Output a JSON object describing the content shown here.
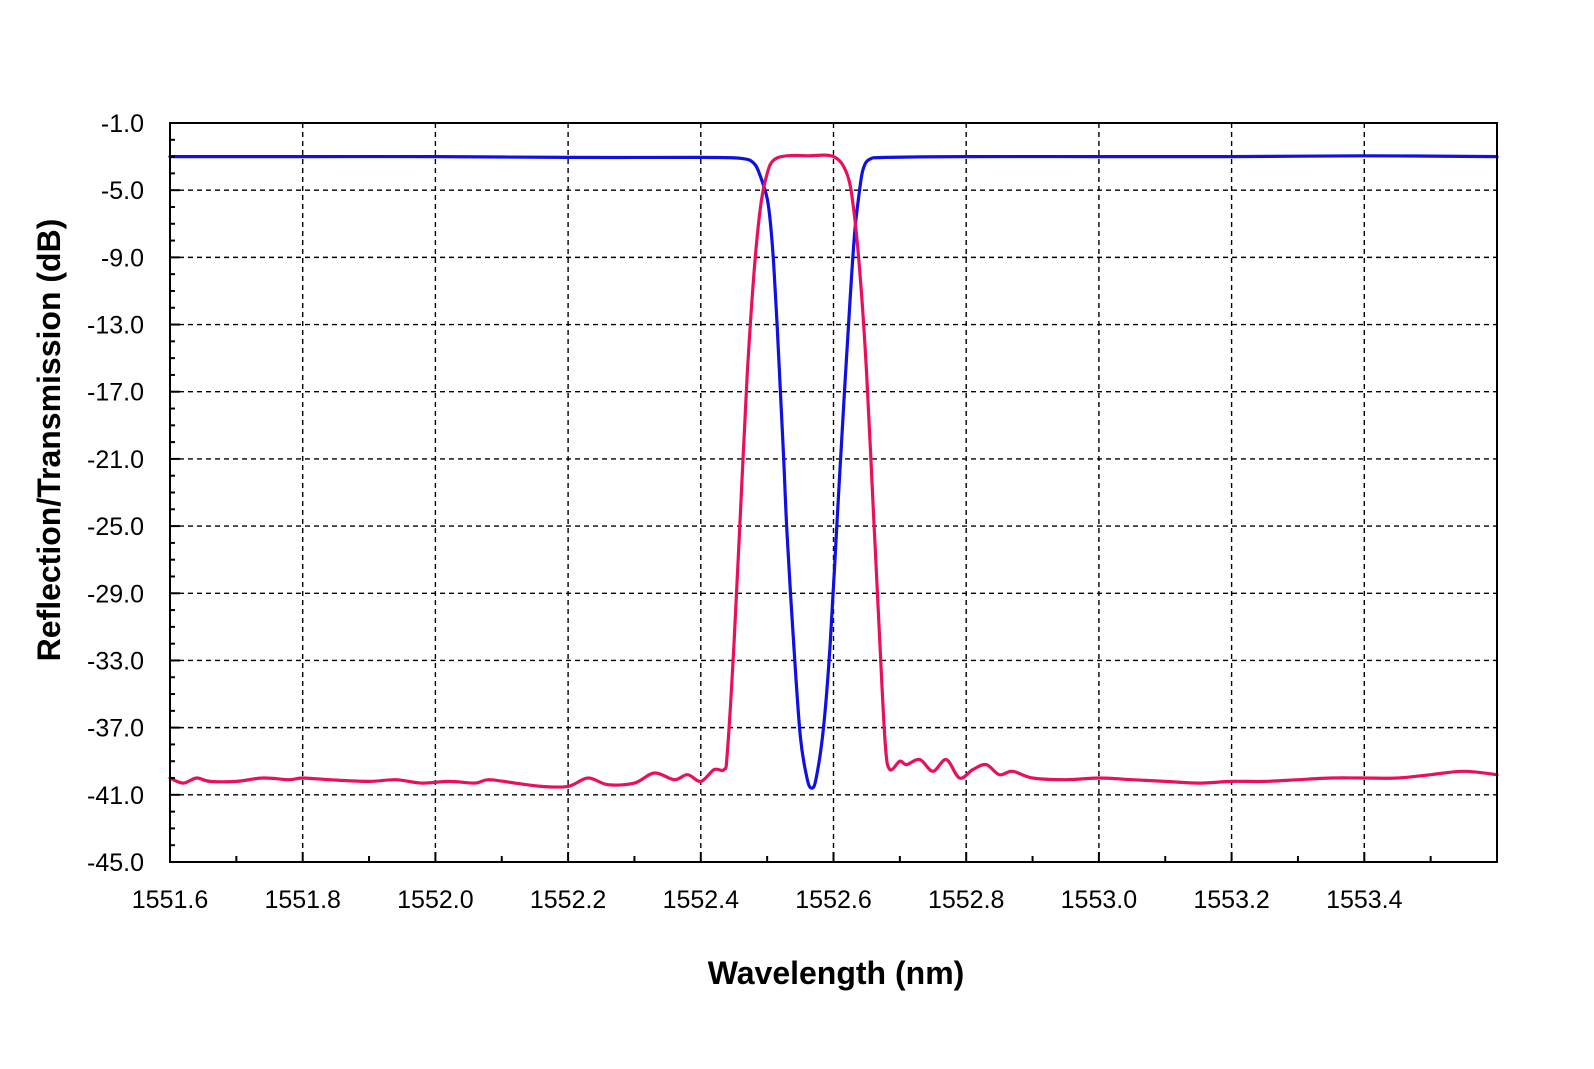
{
  "chart_data": {
    "type": "line",
    "title": "",
    "xlabel": "Wavelength (nm)",
    "ylabel": "Reflection/Transmission  (dB)",
    "xlim": [
      1551.6,
      1553.6
    ],
    "ylim": [
      -45.0,
      -1.0
    ],
    "grid": true,
    "x_ticks": [
      "1551.6",
      "1551.8",
      "1552.0",
      "1552.2",
      "1552.4",
      "1552.6",
      "1552.8",
      "1553.0",
      "1553.2",
      "1553.4"
    ],
    "y_ticks": [
      "-1.0",
      "-5.0",
      "-9.0",
      "-13.0",
      "-17.0",
      "-21.0",
      "-25.0",
      "-29.0",
      "-33.0",
      "-37.0",
      "-41.0",
      "-45.0"
    ],
    "series": [
      {
        "color": "#1010e0",
        "points": [
          [
            1551.6,
            -3.0
          ],
          [
            1551.8,
            -3.0
          ],
          [
            1552.0,
            -3.0
          ],
          [
            1552.2,
            -3.05
          ],
          [
            1552.4,
            -3.05
          ],
          [
            1552.46,
            -3.1
          ],
          [
            1552.48,
            -3.4
          ],
          [
            1552.49,
            -4.2
          ],
          [
            1552.5,
            -5.5
          ],
          [
            1552.505,
            -7.0
          ],
          [
            1552.51,
            -9.5
          ],
          [
            1552.515,
            -13.0
          ],
          [
            1552.52,
            -17.0
          ],
          [
            1552.525,
            -21.0
          ],
          [
            1552.53,
            -25.5
          ],
          [
            1552.54,
            -32.0
          ],
          [
            1552.55,
            -37.5
          ],
          [
            1552.56,
            -40.0
          ],
          [
            1552.567,
            -40.6
          ],
          [
            1552.574,
            -40.0
          ],
          [
            1552.585,
            -37.0
          ],
          [
            1552.595,
            -32.0
          ],
          [
            1552.605,
            -25.0
          ],
          [
            1552.615,
            -18.0
          ],
          [
            1552.625,
            -11.5
          ],
          [
            1552.632,
            -7.5
          ],
          [
            1552.64,
            -4.8
          ],
          [
            1552.645,
            -3.7
          ],
          [
            1552.655,
            -3.15
          ],
          [
            1552.68,
            -3.05
          ],
          [
            1552.8,
            -3.0
          ],
          [
            1553.0,
            -3.0
          ],
          [
            1553.2,
            -3.0
          ],
          [
            1553.4,
            -2.95
          ],
          [
            1553.6,
            -3.0
          ]
        ]
      },
      {
        "color": "#e8105e",
        "points": [
          [
            1551.6,
            -40.0
          ],
          [
            1551.62,
            -40.3
          ],
          [
            1551.64,
            -40.0
          ],
          [
            1551.66,
            -40.2
          ],
          [
            1551.7,
            -40.2
          ],
          [
            1551.74,
            -40.0
          ],
          [
            1551.78,
            -40.1
          ],
          [
            1551.8,
            -40.0
          ],
          [
            1551.84,
            -40.1
          ],
          [
            1551.9,
            -40.2
          ],
          [
            1551.94,
            -40.1
          ],
          [
            1551.98,
            -40.3
          ],
          [
            1552.02,
            -40.2
          ],
          [
            1552.06,
            -40.3
          ],
          [
            1552.08,
            -40.1
          ],
          [
            1552.12,
            -40.3
          ],
          [
            1552.16,
            -40.5
          ],
          [
            1552.2,
            -40.5
          ],
          [
            1552.23,
            -40.0
          ],
          [
            1552.26,
            -40.4
          ],
          [
            1552.3,
            -40.3
          ],
          [
            1552.33,
            -39.7
          ],
          [
            1552.36,
            -40.1
          ],
          [
            1552.38,
            -39.8
          ],
          [
            1552.4,
            -40.2
          ],
          [
            1552.42,
            -39.5
          ],
          [
            1552.435,
            -39.5
          ],
          [
            1552.44,
            -38.5
          ],
          [
            1552.45,
            -32.0
          ],
          [
            1552.46,
            -24.0
          ],
          [
            1552.47,
            -16.0
          ],
          [
            1552.48,
            -10.0
          ],
          [
            1552.49,
            -6.0
          ],
          [
            1552.5,
            -4.0
          ],
          [
            1552.51,
            -3.2
          ],
          [
            1552.53,
            -2.95
          ],
          [
            1552.56,
            -2.95
          ],
          [
            1552.6,
            -3.0
          ],
          [
            1552.62,
            -4.0
          ],
          [
            1552.63,
            -6.0
          ],
          [
            1552.64,
            -10.0
          ],
          [
            1552.65,
            -16.0
          ],
          [
            1552.66,
            -24.0
          ],
          [
            1552.67,
            -32.0
          ],
          [
            1552.678,
            -38.0
          ],
          [
            1552.685,
            -39.5
          ],
          [
            1552.7,
            -39.0
          ],
          [
            1552.71,
            -39.2
          ],
          [
            1552.73,
            -38.9
          ],
          [
            1552.75,
            -39.6
          ],
          [
            1552.77,
            -38.9
          ],
          [
            1552.79,
            -40.0
          ],
          [
            1552.81,
            -39.5
          ],
          [
            1552.83,
            -39.2
          ],
          [
            1552.85,
            -39.8
          ],
          [
            1552.87,
            -39.6
          ],
          [
            1552.9,
            -40.0
          ],
          [
            1552.95,
            -40.1
          ],
          [
            1553.0,
            -40.0
          ],
          [
            1553.05,
            -40.1
          ],
          [
            1553.1,
            -40.2
          ],
          [
            1553.15,
            -40.3
          ],
          [
            1553.2,
            -40.2
          ],
          [
            1553.25,
            -40.2
          ],
          [
            1553.3,
            -40.1
          ],
          [
            1553.35,
            -40.0
          ],
          [
            1553.4,
            -40.0
          ],
          [
            1553.45,
            -40.0
          ],
          [
            1553.5,
            -39.8
          ],
          [
            1553.55,
            -39.6
          ],
          [
            1553.6,
            -39.8
          ]
        ]
      }
    ]
  }
}
